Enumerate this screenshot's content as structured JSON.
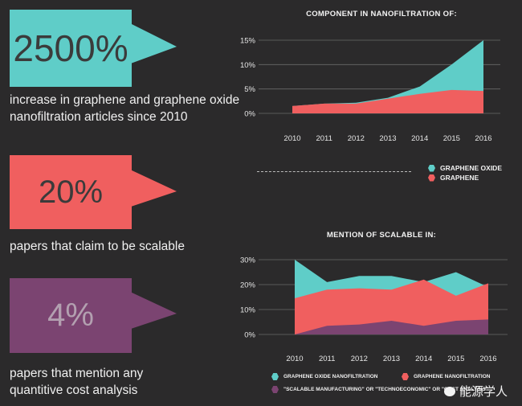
{
  "stats": [
    {
      "value": "2500%",
      "color": "#5fcdc8",
      "text_color": "#3b3b3b",
      "description": "increase in graphene and graphene oxide nanofiltration articles since 2010"
    },
    {
      "value": "20%",
      "color": "#f05f5f",
      "text_color": "#3b3b3b",
      "description": "papers that claim to be scalable"
    },
    {
      "value": "4%",
      "color": "#7b4471",
      "text_color": "#b3a0b0",
      "description": "papers that mention any quantitive cost analysis"
    }
  ],
  "colors": {
    "graphene_oxide": "#5fcdc8",
    "graphene": "#f05f5f",
    "scalable_cost": "#7b4471",
    "background": "#2b2a2b"
  },
  "legend1": [
    {
      "label": "GRAPHENE OXIDE",
      "icon": "hexagon-icon"
    },
    {
      "label": "GRAPHENE",
      "icon": "hexagon-icon"
    }
  ],
  "legend2": [
    {
      "label": "GRAPHENE OXIDE NANOFILTRATION",
      "icon": "hexagon-icon"
    },
    {
      "label": "GRAPHENE NANOFILTRATION",
      "icon": "hexagon-icon"
    },
    {
      "label": "\"SCALABLE MANUFACTURING\" OR \"TECHNOECONOMIC\" OR \"COST ANALYSIS\"",
      "icon": "hexagon-icon"
    }
  ],
  "watermark": "能源学人",
  "chart_data": [
    {
      "type": "area",
      "title": "COMPONENT IN NANOFILTRATION OF:",
      "x": [
        2010,
        2011,
        2012,
        2013,
        2014,
        2015,
        2016
      ],
      "x_ticks": [
        "2010",
        "2011",
        "2012",
        "2013",
        "2014",
        "2015",
        "2016"
      ],
      "y_ticks": [
        "15%",
        "10%",
        "5%",
        "0%"
      ],
      "ylim": [
        0,
        15
      ],
      "stacked": false,
      "series": [
        {
          "name": "GRAPHENE OXIDE",
          "values": [
            1.5,
            2.0,
            2.2,
            3.2,
            5.5,
            10.0,
            15.0
          ]
        },
        {
          "name": "GRAPHENE",
          "values": [
            1.5,
            2.0,
            2.0,
            3.0,
            4.0,
            4.8,
            4.6
          ]
        }
      ]
    },
    {
      "type": "area",
      "title": "MENTION OF SCALABLE IN:",
      "x": [
        2010,
        2011,
        2012,
        2013,
        2014,
        2015,
        2016
      ],
      "x_ticks": [
        "2010",
        "2011",
        "2012",
        "2013",
        "2014",
        "2015",
        "2016"
      ],
      "y_ticks": [
        "30%",
        "20%",
        "10%",
        "0%"
      ],
      "ylim": [
        0,
        30
      ],
      "stacked": false,
      "series": [
        {
          "name": "GRAPHENE OXIDE NANOFILTRATION",
          "values": [
            30,
            21,
            23.5,
            23.5,
            21,
            25,
            19
          ]
        },
        {
          "name": "GRAPHENE NANOFILTRATION",
          "values": [
            14.5,
            18,
            18.5,
            18,
            22,
            15.5,
            20.5
          ]
        },
        {
          "name": "\"SCALABLE MANUFACTURING\" OR \"TECHNOECONOMIC\" OR \"COST ANALYSIS\"",
          "values": [
            0,
            3.5,
            4,
            5.5,
            3.5,
            5.5,
            6
          ]
        }
      ]
    }
  ]
}
